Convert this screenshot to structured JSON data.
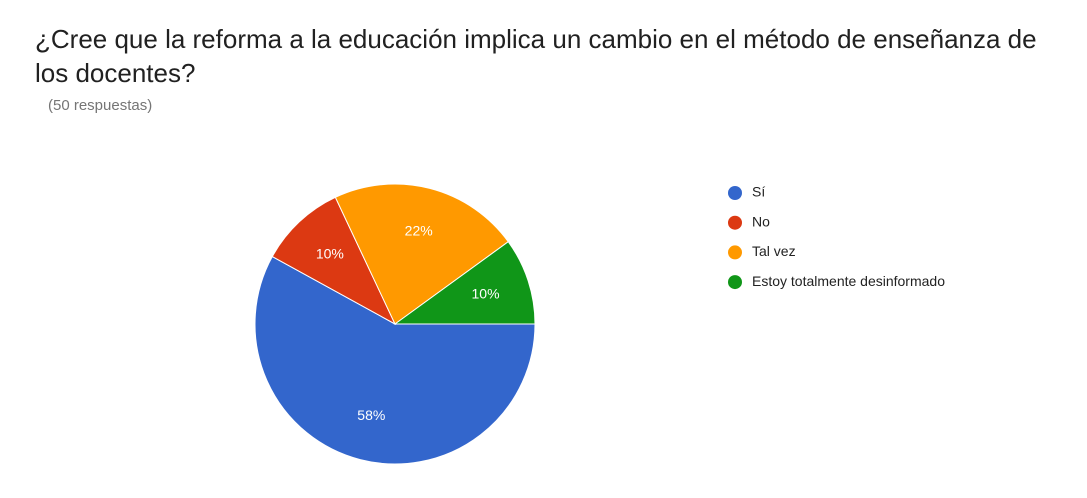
{
  "chart_data": {
    "type": "pie",
    "title": "¿Cree que la reforma a la educación implica un cambio en el método de enseñanza de los docentes?",
    "subtitle": "(50 respuestas)",
    "categories": [
      "Sí",
      "No",
      "Tal vez",
      "Estoy totalmente desinformado"
    ],
    "values": [
      58,
      10,
      22,
      10
    ],
    "value_labels": [
      "58%",
      "10%",
      "22%",
      "10%"
    ],
    "colors": [
      "#3366cc",
      "#dc3912",
      "#ff9900",
      "#109618"
    ],
    "legend": "right"
  }
}
